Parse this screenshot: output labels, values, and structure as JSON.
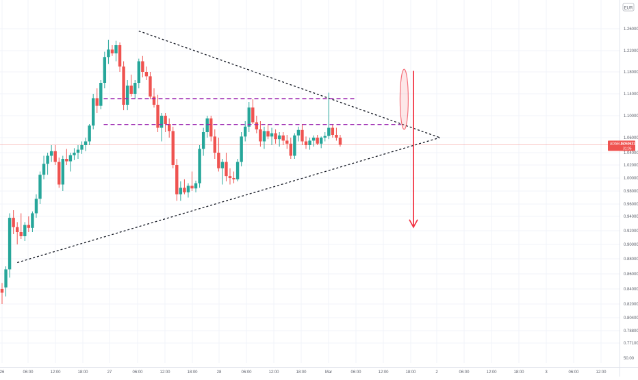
{
  "chart_data": {
    "type": "candlestick",
    "symbol": "ADAEUR",
    "currency": "EUR",
    "last_price": "1.050631",
    "countdown": "31:05",
    "ylim": [
      0.77,
      1.28
    ],
    "y_ticks": [
      "1.260000",
      "1.220000",
      "1.180000",
      "1.140000",
      "1.100000",
      "1.060000",
      "1.040000",
      "1.020000",
      "1.000000",
      "0.980000",
      "0.960000",
      "0.940000",
      "0.920000",
      "0.900000",
      "0.880000",
      "0.860000",
      "0.840000",
      "0.820000",
      "0.804000",
      "0.788000",
      "0.771000"
    ],
    "y_tick_values": [
      1.26,
      1.22,
      1.18,
      1.14,
      1.1,
      1.06,
      1.04,
      1.02,
      1.0,
      0.98,
      0.96,
      0.94,
      0.92,
      0.9,
      0.88,
      0.86,
      0.84,
      0.82,
      0.804,
      0.788,
      0.771
    ],
    "volume_label": "50.00",
    "x_ticks": [
      "26",
      "06:00",
      "12:00",
      "18:00",
      "27",
      "06:00",
      "12:00",
      "18:00",
      "28",
      "06:00",
      "12:00",
      "18:00",
      "Mar",
      "06:00",
      "12:00",
      "18:00",
      "2",
      "06:00",
      "12:00",
      "18:00",
      "3",
      "06:00",
      "12:00"
    ],
    "candles": [
      {
        "o": 0.84,
        "h": 0.848,
        "l": 0.82,
        "c": 0.835
      },
      {
        "o": 0.842,
        "h": 0.87,
        "l": 0.83,
        "c": 0.866
      },
      {
        "o": 0.866,
        "h": 0.945,
        "l": 0.855,
        "c": 0.938
      },
      {
        "o": 0.938,
        "h": 0.95,
        "l": 0.915,
        "c": 0.925
      },
      {
        "o": 0.925,
        "h": 0.932,
        "l": 0.9,
        "c": 0.918
      },
      {
        "o": 0.918,
        "h": 0.945,
        "l": 0.908,
        "c": 0.912
      },
      {
        "o": 0.912,
        "h": 0.932,
        "l": 0.905,
        "c": 0.928
      },
      {
        "o": 0.928,
        "h": 0.94,
        "l": 0.918,
        "c": 0.924
      },
      {
        "o": 0.924,
        "h": 0.948,
        "l": 0.918,
        "c": 0.945
      },
      {
        "o": 0.945,
        "h": 0.975,
        "l": 0.938,
        "c": 0.968
      },
      {
        "o": 0.968,
        "h": 1.01,
        "l": 0.96,
        "c": 1.005
      },
      {
        "o": 1.005,
        "h": 1.035,
        "l": 0.998,
        "c": 1.022
      },
      {
        "o": 1.022,
        "h": 1.04,
        "l": 1.005,
        "c": 1.035
      },
      {
        "o": 1.035,
        "h": 1.05,
        "l": 1.025,
        "c": 1.042
      },
      {
        "o": 1.042,
        "h": 1.05,
        "l": 1.02,
        "c": 1.025
      },
      {
        "o": 1.025,
        "h": 1.032,
        "l": 0.985,
        "c": 0.99
      },
      {
        "o": 0.99,
        "h": 1.035,
        "l": 0.98,
        "c": 1.03
      },
      {
        "o": 1.03,
        "h": 1.045,
        "l": 1.02,
        "c": 1.026
      },
      {
        "o": 1.026,
        "h": 1.04,
        "l": 1.01,
        "c": 1.036
      },
      {
        "o": 1.036,
        "h": 1.046,
        "l": 1.028,
        "c": 1.04
      },
      {
        "o": 1.04,
        "h": 1.05,
        "l": 1.03,
        "c": 1.044
      },
      {
        "o": 1.044,
        "h": 1.055,
        "l": 1.038,
        "c": 1.05
      },
      {
        "o": 1.05,
        "h": 1.06,
        "l": 1.042,
        "c": 1.055
      },
      {
        "o": 1.055,
        "h": 1.085,
        "l": 1.05,
        "c": 1.082
      },
      {
        "o": 1.082,
        "h": 1.14,
        "l": 1.075,
        "c": 1.132
      },
      {
        "o": 1.132,
        "h": 1.15,
        "l": 1.105,
        "c": 1.118
      },
      {
        "o": 1.118,
        "h": 1.165,
        "l": 1.112,
        "c": 1.16
      },
      {
        "o": 1.16,
        "h": 1.218,
        "l": 1.15,
        "c": 1.208
      },
      {
        "o": 1.208,
        "h": 1.24,
        "l": 1.195,
        "c": 1.222
      },
      {
        "o": 1.222,
        "h": 1.23,
        "l": 1.21,
        "c": 1.215
      },
      {
        "o": 1.215,
        "h": 1.238,
        "l": 1.2,
        "c": 1.23
      },
      {
        "o": 1.23,
        "h": 1.235,
        "l": 1.18,
        "c": 1.19
      },
      {
        "o": 1.19,
        "h": 1.2,
        "l": 1.11,
        "c": 1.12
      },
      {
        "o": 1.12,
        "h": 1.165,
        "l": 1.11,
        "c": 1.155
      },
      {
        "o": 1.155,
        "h": 1.175,
        "l": 1.135,
        "c": 1.14
      },
      {
        "o": 1.14,
        "h": 1.165,
        "l": 1.13,
        "c": 1.16
      },
      {
        "o": 1.16,
        "h": 1.205,
        "l": 1.15,
        "c": 1.2
      },
      {
        "o": 1.2,
        "h": 1.21,
        "l": 1.17,
        "c": 1.18
      },
      {
        "o": 1.18,
        "h": 1.19,
        "l": 1.165,
        "c": 1.172
      },
      {
        "o": 1.172,
        "h": 1.18,
        "l": 1.13,
        "c": 1.135
      },
      {
        "o": 1.135,
        "h": 1.15,
        "l": 1.115,
        "c": 1.12
      },
      {
        "o": 1.12,
        "h": 1.138,
        "l": 1.07,
        "c": 1.078
      },
      {
        "o": 1.078,
        "h": 1.105,
        "l": 1.055,
        "c": 1.1
      },
      {
        "o": 1.1,
        "h": 1.105,
        "l": 1.07,
        "c": 1.085
      },
      {
        "o": 1.085,
        "h": 1.095,
        "l": 1.06,
        "c": 1.072
      },
      {
        "o": 1.072,
        "h": 1.08,
        "l": 1.015,
        "c": 1.02
      },
      {
        "o": 1.02,
        "h": 1.03,
        "l": 0.965,
        "c": 0.975
      },
      {
        "o": 0.975,
        "h": 0.995,
        "l": 0.965,
        "c": 0.985
      },
      {
        "o": 0.985,
        "h": 0.998,
        "l": 0.975,
        "c": 0.978
      },
      {
        "o": 0.978,
        "h": 0.992,
        "l": 0.97,
        "c": 0.988
      },
      {
        "o": 0.988,
        "h": 1.01,
        "l": 0.98,
        "c": 0.984
      },
      {
        "o": 0.984,
        "h": 0.996,
        "l": 0.978,
        "c": 0.992
      },
      {
        "o": 0.992,
        "h": 1.05,
        "l": 0.985,
        "c": 1.045
      },
      {
        "o": 1.045,
        "h": 1.078,
        "l": 1.035,
        "c": 1.07
      },
      {
        "o": 1.07,
        "h": 1.1,
        "l": 1.06,
        "c": 1.095
      },
      {
        "o": 1.095,
        "h": 1.1,
        "l": 1.055,
        "c": 1.062
      },
      {
        "o": 1.062,
        "h": 1.075,
        "l": 1.03,
        "c": 1.04
      },
      {
        "o": 1.04,
        "h": 1.06,
        "l": 1.01,
        "c": 1.015
      },
      {
        "o": 1.015,
        "h": 1.03,
        "l": 0.99,
        "c": 1.025
      },
      {
        "o": 1.025,
        "h": 1.04,
        "l": 0.995,
        "c": 1.003
      },
      {
        "o": 1.003,
        "h": 1.015,
        "l": 0.99,
        "c": 1.0
      },
      {
        "o": 1.0,
        "h": 1.01,
        "l": 0.992,
        "c": 0.998
      },
      {
        "o": 0.998,
        "h": 1.03,
        "l": 0.995,
        "c": 1.025
      },
      {
        "o": 1.025,
        "h": 1.07,
        "l": 1.018,
        "c": 1.062
      },
      {
        "o": 1.062,
        "h": 1.09,
        "l": 1.055,
        "c": 1.08
      },
      {
        "o": 1.08,
        "h": 1.125,
        "l": 1.07,
        "c": 1.115
      },
      {
        "o": 1.115,
        "h": 1.13,
        "l": 1.085,
        "c": 1.088
      },
      {
        "o": 1.088,
        "h": 1.1,
        "l": 1.068,
        "c": 1.075
      },
      {
        "o": 1.075,
        "h": 1.09,
        "l": 1.048,
        "c": 1.055
      },
      {
        "o": 1.055,
        "h": 1.08,
        "l": 1.045,
        "c": 1.072
      },
      {
        "o": 1.072,
        "h": 1.085,
        "l": 1.058,
        "c": 1.062
      },
      {
        "o": 1.062,
        "h": 1.078,
        "l": 1.05,
        "c": 1.068
      },
      {
        "o": 1.068,
        "h": 1.075,
        "l": 1.052,
        "c": 1.058
      },
      {
        "o": 1.058,
        "h": 1.07,
        "l": 1.048,
        "c": 1.064
      },
      {
        "o": 1.064,
        "h": 1.07,
        "l": 1.05,
        "c": 1.056
      },
      {
        "o": 1.056,
        "h": 1.065,
        "l": 1.045,
        "c": 1.052
      },
      {
        "o": 1.052,
        "h": 1.06,
        "l": 1.03,
        "c": 1.035
      },
      {
        "o": 1.035,
        "h": 1.068,
        "l": 1.03,
        "c": 1.064
      },
      {
        "o": 1.064,
        "h": 1.08,
        "l": 1.055,
        "c": 1.074
      },
      {
        "o": 1.074,
        "h": 1.085,
        "l": 1.05,
        "c": 1.055
      },
      {
        "o": 1.055,
        "h": 1.062,
        "l": 1.045,
        "c": 1.05
      },
      {
        "o": 1.05,
        "h": 1.06,
        "l": 1.044,
        "c": 1.056
      },
      {
        "o": 1.056,
        "h": 1.064,
        "l": 1.048,
        "c": 1.06
      },
      {
        "o": 1.06,
        "h": 1.065,
        "l": 1.05,
        "c": 1.052
      },
      {
        "o": 1.052,
        "h": 1.062,
        "l": 1.046,
        "c": 1.06
      },
      {
        "o": 1.06,
        "h": 1.07,
        "l": 1.055,
        "c": 1.063
      },
      {
        "o": 1.063,
        "h": 1.142,
        "l": 1.058,
        "c": 1.078
      },
      {
        "o": 1.078,
        "h": 1.085,
        "l": 1.06,
        "c": 1.065
      },
      {
        "o": 1.065,
        "h": 1.078,
        "l": 1.056,
        "c": 1.06
      },
      {
        "o": 1.06,
        "h": 1.065,
        "l": 1.048,
        "c": 1.0506
      }
    ],
    "trendlines": [
      {
        "name": "upper-resistance",
        "style": "dashed",
        "color": "#131722",
        "x0": 36,
        "y0": 1.256,
        "x1": 112,
        "y1": 1.06
      },
      {
        "name": "lower-support",
        "style": "dashed",
        "color": "#131722",
        "x0": 4,
        "y0": 0.875,
        "x1": 112,
        "y1": 1.06
      }
    ],
    "levels": [
      {
        "name": "level-upper",
        "value": 1.131,
        "x0": 30,
        "x1": 93,
        "color": "#9c27b0"
      },
      {
        "name": "level-lower",
        "value": 1.084,
        "x0": 30,
        "x1": 105,
        "color": "#9c27b0"
      }
    ],
    "highlight": {
      "x": 108,
      "y_top": 1.185,
      "y_bottom": 1.075,
      "color": "#f23645"
    },
    "projection_arrow": {
      "x": 120,
      "y_from": 1.182,
      "y_to": 0.925,
      "color": "#f23645"
    },
    "colors": {
      "up": "#26a69a",
      "down": "#ef5350",
      "grid": "#f0f3fa",
      "price_line": "#ef5350",
      "axis_text": "#5d606b"
    }
  }
}
